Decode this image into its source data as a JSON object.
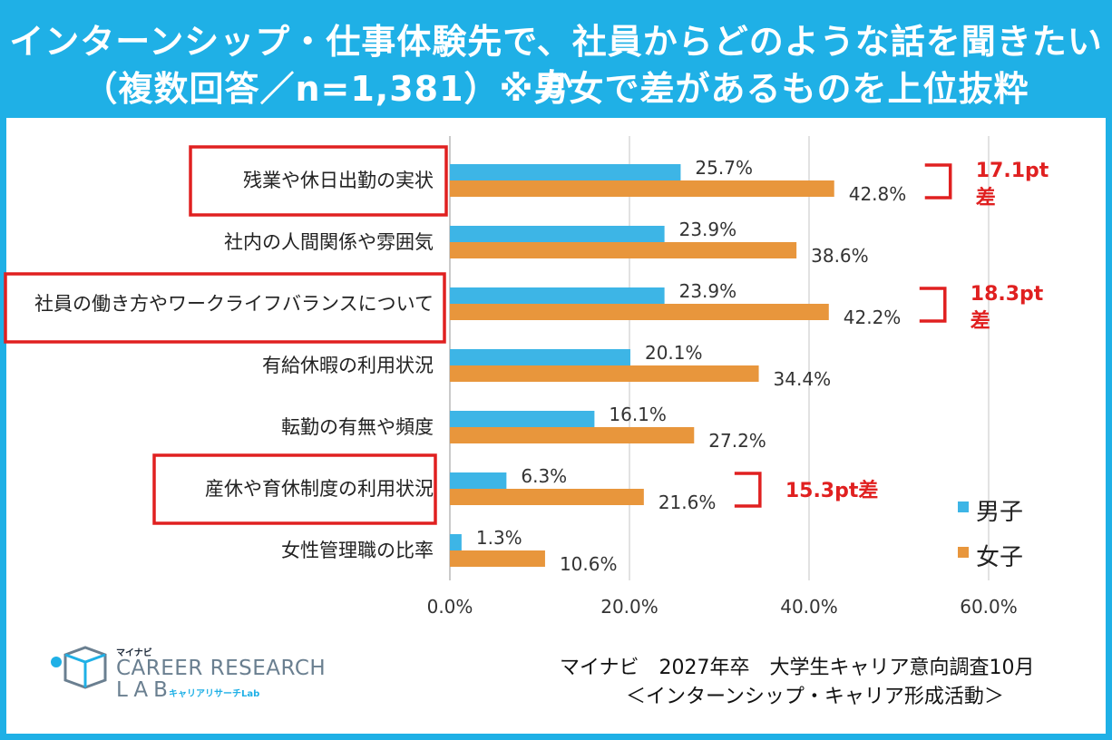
{
  "header": {
    "title_line1": "インターンシップ・仕事体験先で、社員からどのような話を聞きたいか",
    "title_line2": "（複数回答／n=1,381）※男女で差があるものを上位抜粋"
  },
  "colors": {
    "header_bg": "#1fb0e6",
    "male": "#3db5e6",
    "female": "#e8963c",
    "highlight": "#e02020"
  },
  "chart_data": {
    "type": "bar",
    "orientation": "horizontal",
    "categories": [
      "残業や休日出勤の実状",
      "社内の人間関係や雰囲気",
      "社員の働き方やワークライフバランスについて",
      "有給休暇の利用状況",
      "転勤の有無や頻度",
      "産休や育休制度の利用状況",
      "女性管理職の比率"
    ],
    "series": [
      {
        "name": "男子",
        "values": [
          25.7,
          23.9,
          23.9,
          20.1,
          16.1,
          6.3,
          1.3
        ],
        "labels": [
          "25.7%",
          "23.9%",
          "23.9%",
          "20.1%",
          "16.1%",
          "6.3%",
          "1.3%"
        ]
      },
      {
        "name": "女子",
        "values": [
          42.8,
          38.6,
          42.2,
          34.4,
          27.2,
          21.6,
          10.6
        ],
        "labels": [
          "42.8%",
          "38.6%",
          "42.2%",
          "34.4%",
          "27.2%",
          "21.6%",
          "10.6%"
        ]
      }
    ],
    "xlim": [
      0,
      60
    ],
    "xticks": [
      "0.0%",
      "20.0%",
      "40.0%",
      "60.0%"
    ],
    "highlighted_categories": [
      0,
      2,
      5
    ],
    "annotations": [
      {
        "category_index": 0,
        "text": "17.1pt差",
        "line1": "17.1pt",
        "line2": "差"
      },
      {
        "category_index": 2,
        "text": "18.3pt差",
        "line1": "18.3pt",
        "line2": "差"
      },
      {
        "category_index": 5,
        "text": "15.3pt差",
        "line1": "15.3pt差",
        "line2": ""
      }
    ]
  },
  "legend": {
    "male": "男子",
    "female": "女子"
  },
  "source": {
    "line1": "マイナビ　2027年卒　大学生キャリア意向調査10月",
    "line2": "＜インターンシップ・キャリア形成活動＞"
  },
  "logo": {
    "small": "マイナビ",
    "big": "CAREER RESEARCH",
    "lab": "LAB",
    "jp": "キャリアリサーチLab"
  }
}
